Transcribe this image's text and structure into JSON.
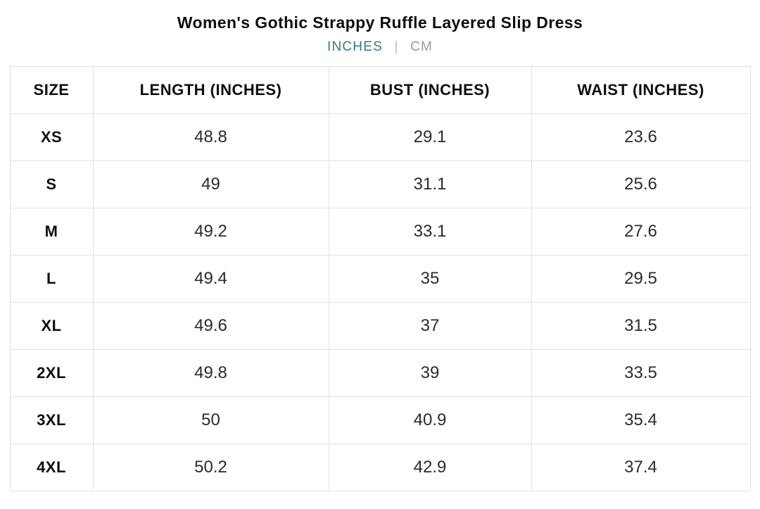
{
  "page": {
    "title": "Women's Gothic Strappy Ruffle Layered Slip Dress"
  },
  "unit_toggle": {
    "inches_label": "INCHES",
    "separator": "|",
    "cm_label": "CM",
    "active_unit": "INCHES"
  },
  "colors": {
    "active_unit_teal": "#3b767b",
    "inactive_unit_gray": "#9c9c9c",
    "table_border": "#e2e2e2",
    "text_black": "#0e0e0e"
  },
  "size_chart": {
    "columns": [
      "SIZE",
      "LENGTH (INCHES)",
      "BUST (INCHES)",
      "WAIST (INCHES)"
    ],
    "rows": [
      {
        "size": "XS",
        "length": "48.8",
        "bust": "29.1",
        "waist": "23.6"
      },
      {
        "size": "S",
        "length": "49",
        "bust": "31.1",
        "waist": "25.6"
      },
      {
        "size": "M",
        "length": "49.2",
        "bust": "33.1",
        "waist": "27.6"
      },
      {
        "size": "L",
        "length": "49.4",
        "bust": "35",
        "waist": "29.5"
      },
      {
        "size": "XL",
        "length": "49.6",
        "bust": "37",
        "waist": "31.5"
      },
      {
        "size": "2XL",
        "length": "49.8",
        "bust": "39",
        "waist": "33.5"
      },
      {
        "size": "3XL",
        "length": "50",
        "bust": "40.9",
        "waist": "35.4"
      },
      {
        "size": "4XL",
        "length": "50.2",
        "bust": "42.9",
        "waist": "37.4"
      }
    ]
  }
}
